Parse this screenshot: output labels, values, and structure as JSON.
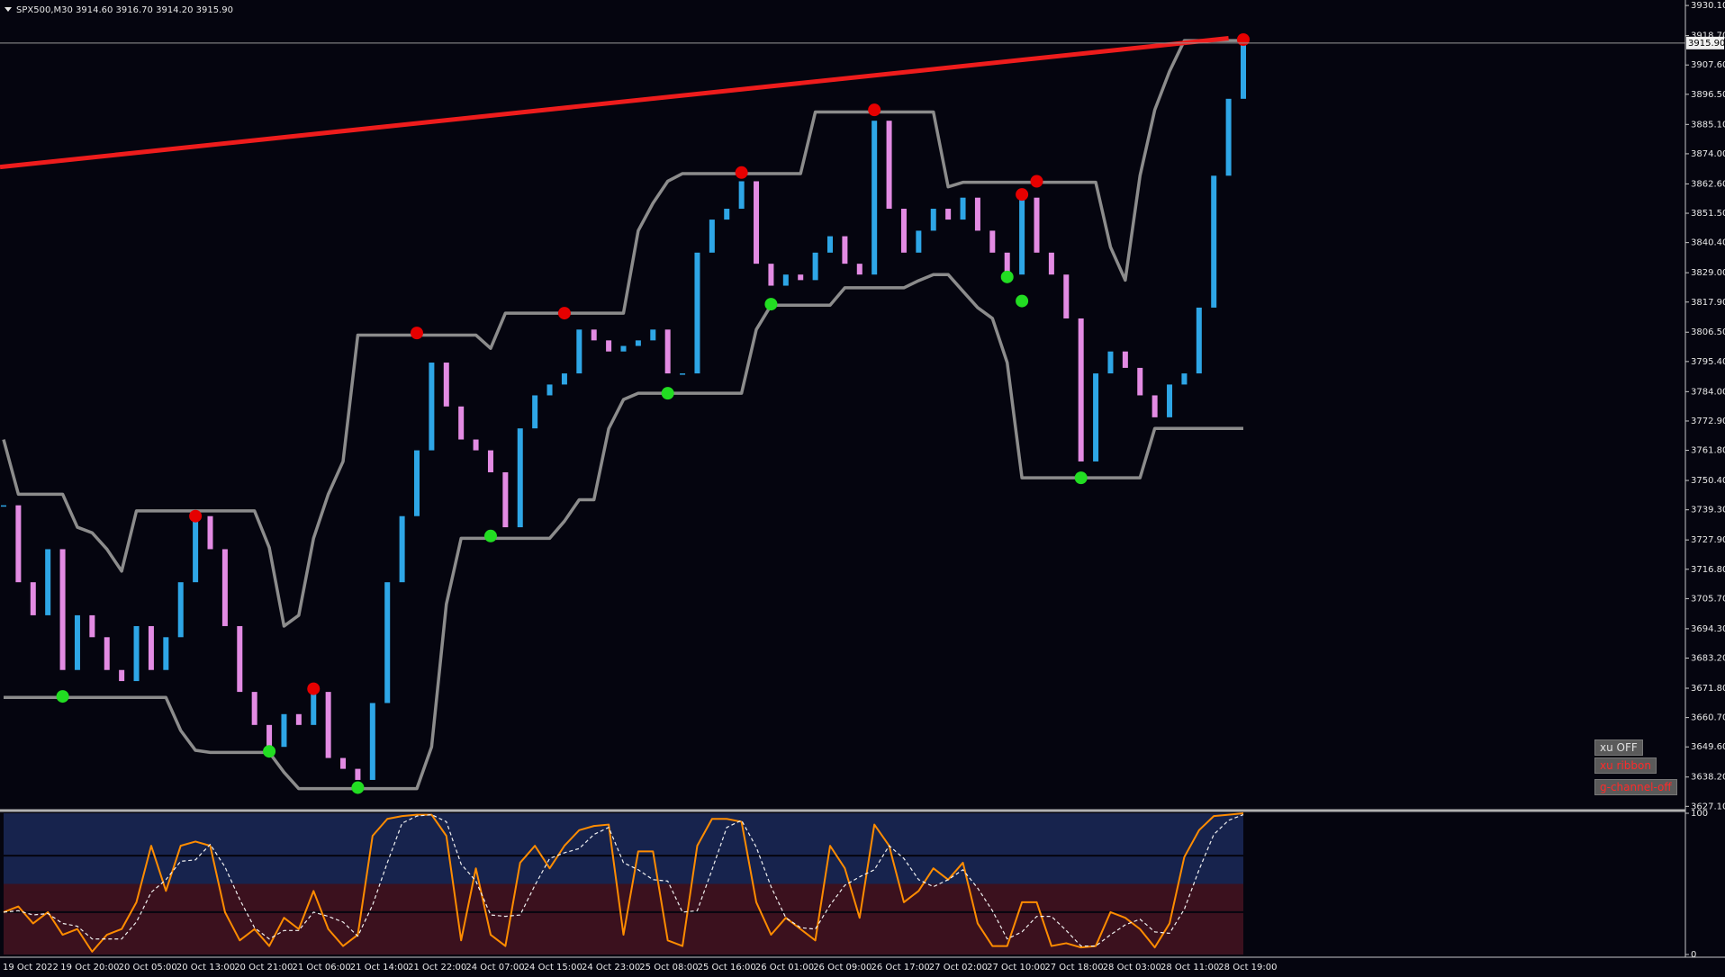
{
  "header_text": "SPX500,M30  3914.60 3916.70 3914.20 3915.90",
  "buttons": [
    "xu OFF",
    "xu ribbon",
    "g-channel-off"
  ],
  "chart_data": [
    {
      "type": "candlestick",
      "up_color": "#2ea6e6",
      "down_color": "#e38be3",
      "ylim": [
        3625.85,
        3932.18
      ],
      "yticks": [
        {
          "value": 3930.1,
          "label": "3930.10"
        },
        {
          "value": 3918.7,
          "label": "3918.70"
        },
        {
          "value": 3907.6,
          "label": "3907.60"
        },
        {
          "value": 3896.5,
          "label": "3896.50"
        },
        {
          "value": 3885.1,
          "label": "3885.10"
        },
        {
          "value": 3874.0,
          "label": "3874.00"
        },
        {
          "value": 3862.6,
          "label": "3862.60"
        },
        {
          "value": 3851.5,
          "label": "3851.50"
        },
        {
          "value": 3840.4,
          "label": "3840.40"
        },
        {
          "value": 3829.0,
          "label": "3829.00"
        },
        {
          "value": 3817.9,
          "label": "3817.90"
        },
        {
          "value": 3806.5,
          "label": "3806.50"
        },
        {
          "value": 3795.4,
          "label": "3795.40"
        },
        {
          "value": 3784.0,
          "label": "3784.00"
        },
        {
          "value": 3772.9,
          "label": "3772.90"
        },
        {
          "value": 3761.8,
          "label": "3761.80"
        },
        {
          "value": 3750.4,
          "label": "3750.40"
        },
        {
          "value": 3739.3,
          "label": "3739.30"
        },
        {
          "value": 3727.9,
          "label": "3727.90"
        },
        {
          "value": 3716.8,
          "label": "3716.80"
        },
        {
          "value": 3705.7,
          "label": "3705.70"
        },
        {
          "value": 3694.3,
          "label": "3694.30"
        },
        {
          "value": 3683.2,
          "label": "3683.20"
        },
        {
          "value": 3671.8,
          "label": "3671.80"
        },
        {
          "value": 3660.7,
          "label": "3660.70"
        },
        {
          "value": 3649.6,
          "label": "3649.60"
        },
        {
          "value": 3638.2,
          "label": "3638.20"
        },
        {
          "value": 3627.1,
          "label": "3627.10"
        }
      ],
      "last_price": {
        "value": 3915.9,
        "label": "3915.90"
      },
      "trendline": {
        "color": "#ee1c1c",
        "values": [
          3869.0,
          3917.7
        ]
      },
      "series": [
        {
          "style": "candles",
          "values": [
            3741.0,
            3711.9,
            3699.4,
            3724.4,
            3678.7,
            3699.4,
            3691.1,
            3678.7,
            3674.5,
            3695.3,
            3678.7,
            3691.1,
            3711.9,
            3736.9,
            3724.4,
            3695.3,
            3670.4,
            3657.9,
            3649.6,
            3662.0,
            3657.9,
            3670.4,
            3645.4,
            3641.3,
            3637.1,
            3666.2,
            3711.9,
            3736.9,
            3761.8,
            3795.0,
            3778.4,
            3765.9,
            3761.8,
            3753.5,
            3732.7,
            3770.1,
            3782.6,
            3786.7,
            3790.9,
            3807.5,
            3803.4,
            3799.2,
            3801.3,
            3803.4,
            3807.5,
            3790.9,
            3790.9,
            3836.6,
            3849.1,
            3853.2,
            3863.6,
            3832.4,
            3824.1,
            3828.3,
            3826.2,
            3836.6,
            3842.8,
            3832.4,
            3828.3,
            3886.5,
            3853.2,
            3836.6,
            3844.9,
            3853.2,
            3849.1,
            3857.4,
            3844.9,
            3836.6,
            3828.3,
            3857.4,
            3836.6,
            3828.3,
            3811.7,
            3757.6,
            3790.9,
            3799.2,
            3793.0,
            3782.6,
            3774.3,
            3786.7,
            3790.9,
            3815.8,
            3865.7,
            3894.8,
            3915.6
          ]
        },
        {
          "style": "line",
          "color": "#8c8c8c",
          "values": [
            3765.9,
            3745.2,
            3745.2,
            3745.2,
            3745.2,
            3732.7,
            3730.6,
            3724.4,
            3716.1,
            3738.9,
            3738.9,
            3738.9,
            3738.9,
            3738.9,
            3738.9,
            3738.9,
            3738.9,
            3738.9,
            3725.0,
            3695.3,
            3699.4,
            3728.5,
            3745.2,
            3757.6,
            3805.4,
            3805.4,
            3805.4,
            3805.4,
            3805.4,
            3805.4,
            3805.4,
            3805.4,
            3805.4,
            3800.4,
            3813.7,
            3813.7,
            3813.7,
            3813.7,
            3813.7,
            3813.7,
            3813.7,
            3813.7,
            3813.7,
            3844.9,
            3855.3,
            3863.6,
            3866.5,
            3866.5,
            3866.5,
            3866.5,
            3866.5,
            3866.5,
            3866.5,
            3866.5,
            3866.5,
            3889.8,
            3889.8,
            3889.8,
            3889.8,
            3889.8,
            3889.8,
            3889.8,
            3889.8,
            3889.8,
            3861.5,
            3863.2,
            3863.2,
            3863.2,
            3863.2,
            3863.2,
            3863.2,
            3863.2,
            3863.2,
            3863.2,
            3863.2,
            3838.7,
            3826.2,
            3865.7,
            3890.6,
            3905.2,
            3916.8,
            3916.8,
            3916.8,
            3916.8,
            3916.8
          ]
        },
        {
          "style": "line",
          "color": "#8c8c8c",
          "values": [
            3668.3,
            3668.3,
            3668.3,
            3668.3,
            3668.3,
            3668.3,
            3668.3,
            3668.3,
            3668.3,
            3668.3,
            3668.3,
            3668.3,
            3655.8,
            3648.3,
            3647.5,
            3647.5,
            3647.5,
            3647.5,
            3647.5,
            3640.0,
            3633.8,
            3633.8,
            3633.8,
            3633.8,
            3633.8,
            3633.8,
            3633.8,
            3633.8,
            3633.8,
            3649.6,
            3703.6,
            3728.5,
            3728.5,
            3728.5,
            3728.5,
            3728.5,
            3728.5,
            3728.5,
            3735.0,
            3743.1,
            3743.1,
            3770.0,
            3781.0,
            3783.4,
            3783.4,
            3783.4,
            3783.4,
            3783.4,
            3783.4,
            3783.4,
            3783.4,
            3807.5,
            3816.7,
            3816.7,
            3816.7,
            3816.7,
            3816.7,
            3823.3,
            3823.3,
            3823.3,
            3823.3,
            3823.3,
            3826.0,
            3828.3,
            3828.3,
            3822.0,
            3815.8,
            3811.7,
            3795.0,
            3751.4,
            3751.4,
            3751.4,
            3751.4,
            3751.4,
            3751.4,
            3751.4,
            3751.4,
            3751.4,
            3770.1,
            3770.1,
            3770.1,
            3770.1,
            3770.1,
            3770.1,
            3770.1
          ]
        },
        {
          "style": "dots",
          "color": "#e60000",
          "values": [
            null,
            null,
            null,
            null,
            null,
            null,
            null,
            null,
            null,
            null,
            null,
            null,
            null,
            3736.9,
            null,
            null,
            null,
            null,
            null,
            null,
            null,
            3671.6,
            null,
            null,
            null,
            null,
            null,
            null,
            3806.2,
            null,
            null,
            null,
            null,
            null,
            null,
            null,
            null,
            null,
            3813.7,
            null,
            null,
            null,
            null,
            null,
            null,
            null,
            null,
            null,
            null,
            null,
            3866.9,
            null,
            null,
            null,
            null,
            null,
            null,
            null,
            null,
            3890.6,
            null,
            null,
            null,
            null,
            null,
            null,
            null,
            null,
            null,
            3858.6,
            3863.6,
            null,
            null,
            null,
            null,
            null,
            null,
            null,
            null,
            null,
            null,
            null,
            null,
            null,
            3917.2
          ]
        },
        {
          "style": "dots",
          "color": "#22dd22",
          "values": [
            null,
            null,
            null,
            null,
            3668.7,
            null,
            null,
            null,
            null,
            null,
            null,
            null,
            null,
            null,
            null,
            null,
            null,
            null,
            3647.9,
            null,
            null,
            null,
            null,
            null,
            3634.2,
            null,
            null,
            null,
            null,
            null,
            null,
            null,
            null,
            3729.4,
            null,
            null,
            null,
            null,
            null,
            null,
            null,
            null,
            null,
            null,
            null,
            3783.4,
            null,
            null,
            null,
            null,
            null,
            null,
            3817.1,
            null,
            null,
            null,
            null,
            null,
            null,
            null,
            null,
            null,
            null,
            null,
            null,
            null,
            null,
            null,
            3827.4,
            3818.3,
            null,
            null,
            null,
            3751.4,
            null,
            null,
            null,
            null,
            null,
            null,
            null,
            null,
            null,
            null,
            null
          ]
        }
      ]
    },
    {
      "type": "line",
      "ylim": [
        0,
        100
      ],
      "yticks": [
        0,
        100
      ],
      "levels": [
        30,
        70
      ],
      "level_color": "#05050f",
      "bands": [
        {
          "from": 50,
          "to": 100,
          "color": "#17234d"
        },
        {
          "from": 0,
          "to": 50,
          "color": "#3b111e"
        }
      ],
      "x_labels": [
        "19 Oct 2022",
        "19 Oct 20:00",
        "20 Oct 05:00",
        "20 Oct 13:00",
        "20 Oct 21:00",
        "21 Oct 06:00",
        "21 Oct 14:00",
        "21 Oct 22:00",
        "24 Oct 07:00",
        "24 Oct 15:00",
        "24 Oct 23:00",
        "25 Oct 08:00",
        "25 Oct 16:00",
        "26 Oct 01:00",
        "26 Oct 09:00",
        "26 Oct 17:00",
        "27 Oct 02:00",
        "27 Oct 10:00",
        "27 Oct 18:00",
        "28 Oct 03:00",
        "28 Oct 11:00",
        "28 Oct 19:00"
      ],
      "series": [
        {
          "style": "line",
          "color": "#ff8c00",
          "values": [
            30,
            34,
            22,
            30,
            14,
            18,
            2,
            14,
            18,
            37,
            77,
            45,
            77,
            80,
            77,
            30,
            10,
            18,
            6,
            26,
            18,
            45,
            18,
            6,
            14,
            84,
            96,
            98,
            99,
            99,
            84,
            10,
            61,
            14,
            6,
            65,
            77,
            61,
            77,
            88,
            91,
            92,
            14,
            73,
            73,
            10,
            6,
            77,
            96,
            96,
            94,
            37,
            14,
            26,
            18,
            10,
            77,
            61,
            26,
            92,
            77,
            37,
            45,
            61,
            53,
            65,
            22,
            6,
            6,
            37,
            37,
            6,
            8,
            5,
            6,
            30,
            26,
            18,
            5,
            22,
            69,
            88,
            98,
            99,
            100
          ]
        },
        {
          "style": "dashed",
          "color": "#f0f0f0",
          "values": [
            30,
            31,
            28,
            29,
            22,
            20,
            11,
            11,
            11,
            23,
            44,
            53,
            66,
            67,
            78,
            62,
            39,
            19,
            11,
            17,
            17,
            30,
            27,
            23,
            13,
            35,
            65,
            93,
            98,
            99,
            94,
            64,
            52,
            28,
            27,
            28,
            49,
            68,
            72,
            75,
            85,
            90,
            65,
            60,
            53,
            52,
            30,
            31,
            60,
            90,
            95,
            76,
            48,
            26,
            19,
            18,
            35,
            49,
            55,
            60,
            77,
            68,
            53,
            48,
            53,
            60,
            47,
            31,
            11,
            16,
            27,
            27,
            17,
            6,
            6,
            14,
            21,
            25,
            16,
            15,
            32,
            60,
            85,
            95,
            99
          ]
        }
      ]
    }
  ]
}
